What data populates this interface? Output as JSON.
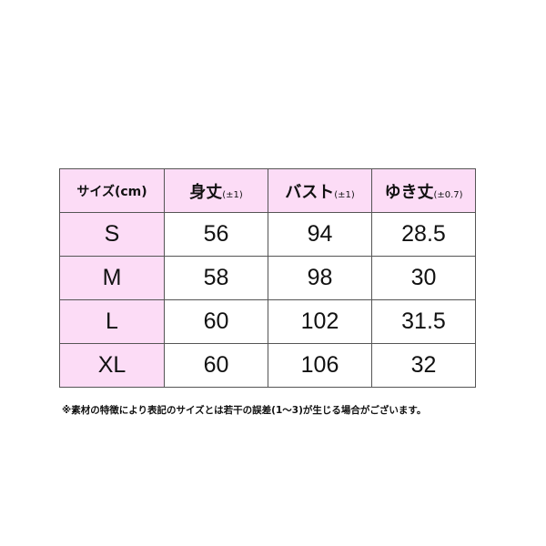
{
  "table": {
    "header": [
      {
        "main": "サイズ(cm)",
        "tol": ""
      },
      {
        "main": "身丈",
        "tol": "(±1)"
      },
      {
        "main": "バスト",
        "tol": "(±1)"
      },
      {
        "main": "ゆき丈",
        "tol": "(±0.7)"
      }
    ],
    "rows": [
      [
        "S",
        "56",
        "94",
        "28.5"
      ],
      [
        "M",
        "58",
        "98",
        "30"
      ],
      [
        "L",
        "60",
        "102",
        "31.5"
      ],
      [
        "XL",
        "60",
        "106",
        "32"
      ]
    ]
  },
  "note": "※素材の特徴により表記のサイズとは若干の誤差(1〜3)が生じる場合がございます。",
  "colors": {
    "header_bg": "#fcdcf6",
    "border": "#555555"
  }
}
